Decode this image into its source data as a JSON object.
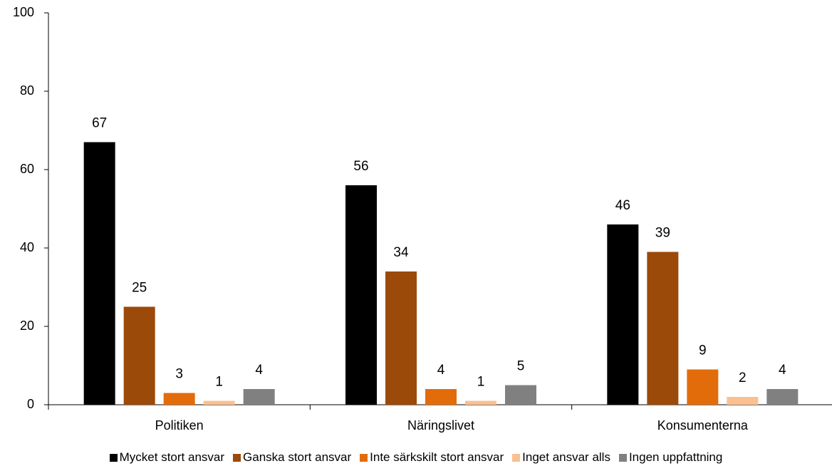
{
  "chart_data": {
    "type": "bar",
    "categories": [
      "Politiken",
      "Näringslivet",
      "Konsumenterna"
    ],
    "series": [
      {
        "name": "Mycket stort ansvar",
        "color": "#000000",
        "values": [
          67,
          56,
          46
        ]
      },
      {
        "name": "Ganska stort ansvar",
        "color": "#9c4a0a",
        "values": [
          25,
          34,
          39
        ]
      },
      {
        "name": "Inte särkskilt stort ansvar",
        "color": "#e36c0a",
        "values": [
          3,
          4,
          9
        ]
      },
      {
        "name": "Inget ansvar alls",
        "color": "#fac090",
        "values": [
          1,
          1,
          2
        ]
      },
      {
        "name": "Ingen uppfattning",
        "color": "#808080",
        "values": [
          4,
          5,
          4
        ]
      }
    ],
    "ylim": [
      0,
      100
    ],
    "yticks": [
      0,
      20,
      40,
      60,
      80,
      100
    ],
    "grid": false,
    "legend": "bottom"
  }
}
